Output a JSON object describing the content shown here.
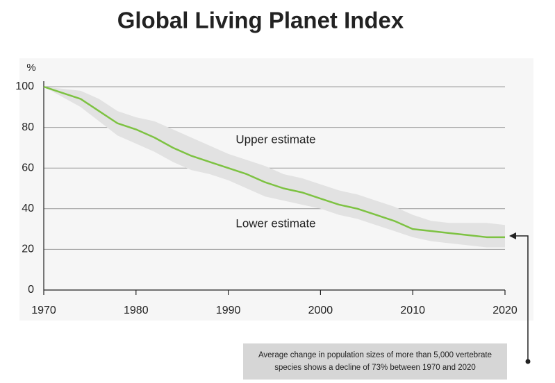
{
  "chart_data": {
    "type": "line",
    "title": "Global Living Planet Index",
    "y_label": "%",
    "x": [
      1970,
      1972,
      1974,
      1976,
      1978,
      1980,
      1982,
      1984,
      1986,
      1988,
      1990,
      1992,
      1994,
      1996,
      1998,
      2000,
      2002,
      2004,
      2006,
      2008,
      2010,
      2012,
      2014,
      2016,
      2018,
      2020
    ],
    "values": [
      100,
      97,
      94,
      88,
      82,
      79,
      75,
      70,
      66,
      63,
      60,
      57,
      53,
      50,
      48,
      45,
      42,
      40,
      37,
      34,
      30,
      29,
      28,
      27,
      26,
      26
    ],
    "color": "#7dc242",
    "band": {
      "upper": [
        100,
        99,
        98,
        94,
        88,
        85,
        83,
        79,
        75,
        71,
        67,
        64,
        61,
        57,
        55,
        52,
        49,
        47,
        44,
        41,
        37,
        34,
        33,
        33,
        33,
        32
      ],
      "lower": [
        100,
        95,
        90,
        83,
        76,
        72,
        68,
        63,
        59,
        57,
        54,
        50,
        46,
        44,
        42,
        40,
        37,
        35,
        32,
        29,
        26,
        24,
        23,
        22,
        21,
        21
      ],
      "upper_label": "Upper estimate",
      "lower_label": "Lower estimate",
      "color": "#e2e2e2"
    },
    "xlim": [
      1970,
      2020
    ],
    "ylim": [
      0,
      100
    ],
    "xticks": [
      1970,
      1980,
      1990,
      2000,
      2010,
      2020
    ],
    "yticks": [
      0,
      20,
      40,
      60,
      80,
      100
    ],
    "grid": true,
    "annotation": [
      "Average change in population sizes of more than 5,000 vertebrate",
      "species shows a decline of 73% between 1970 and 2020"
    ]
  }
}
